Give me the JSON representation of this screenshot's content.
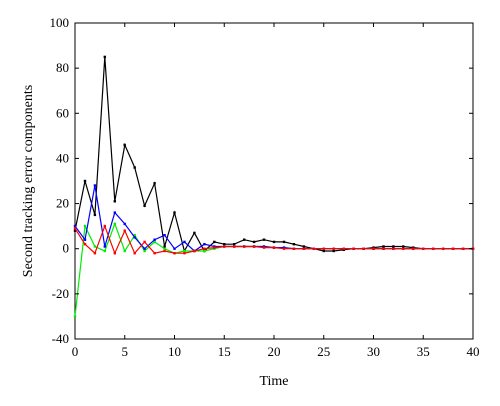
{
  "chart_data": {
    "type": "line",
    "title": "",
    "xlabel": "Time",
    "ylabel": "Second tracking error components",
    "xlim": [
      0,
      40
    ],
    "ylim": [
      -40,
      100
    ],
    "xticks": [
      0,
      5,
      10,
      15,
      20,
      25,
      30,
      35,
      40
    ],
    "yticks": [
      -40,
      -20,
      0,
      20,
      40,
      60,
      80,
      100
    ],
    "grid": false,
    "series": [
      {
        "color": "#000000",
        "x": [
          0,
          1,
          2,
          3,
          4,
          5,
          6,
          7,
          8,
          9,
          10,
          11,
          12,
          13,
          14,
          15,
          16,
          17,
          18,
          19,
          20,
          21,
          22,
          23,
          24,
          25,
          26,
          27,
          28,
          29,
          30,
          31,
          32,
          33,
          34,
          35,
          36,
          37,
          38,
          39,
          40
        ],
        "y": [
          8,
          30,
          15,
          85,
          21,
          46,
          36,
          19,
          29,
          1,
          16,
          -1,
          7,
          -1,
          3,
          2,
          2,
          4,
          3,
          4,
          3,
          3,
          2,
          1,
          0,
          -1,
          -1,
          -0.5,
          0,
          0,
          0.5,
          1,
          1,
          1,
          0.5,
          0,
          0,
          0,
          0,
          0,
          0
        ]
      },
      {
        "color": "#00ee00",
        "x": [
          0,
          1,
          2,
          3,
          4,
          5,
          6,
          7,
          8,
          9,
          10,
          11,
          12,
          13,
          14,
          15,
          16,
          17,
          18,
          19,
          20,
          21,
          22,
          23,
          24,
          25,
          26,
          27,
          28,
          29,
          30,
          31,
          32,
          33,
          34,
          35,
          36,
          37,
          38,
          39,
          40
        ],
        "y": [
          -30,
          10,
          1,
          -1,
          11,
          -1,
          6,
          -1,
          3,
          0,
          -2,
          -1,
          -1,
          -1,
          0,
          1,
          1,
          1,
          1,
          1,
          0.5,
          0.5,
          0,
          0,
          0,
          0,
          0,
          0,
          0,
          0,
          0,
          0,
          0,
          0,
          0,
          0,
          0,
          0,
          0,
          0,
          0
        ]
      },
      {
        "color": "#0000ff",
        "x": [
          0,
          1,
          2,
          3,
          4,
          5,
          6,
          7,
          8,
          9,
          10,
          11,
          12,
          13,
          14,
          15,
          16,
          17,
          18,
          19,
          20,
          21,
          22,
          23,
          24,
          25,
          26,
          27,
          28,
          29,
          30,
          31,
          32,
          33,
          34,
          35,
          36,
          37,
          38,
          39,
          40
        ],
        "y": [
          10,
          4,
          28,
          1,
          16,
          11,
          5,
          0,
          4,
          6,
          0,
          3,
          -1,
          2,
          1,
          1,
          1,
          1,
          1,
          1,
          0.5,
          0.5,
          0,
          0,
          0,
          0,
          0,
          0,
          0,
          0,
          0,
          0,
          0,
          0,
          0,
          0,
          0,
          0,
          0,
          0,
          0
        ]
      },
      {
        "color": "#ff0000",
        "x": [
          0,
          1,
          2,
          3,
          4,
          5,
          6,
          7,
          8,
          9,
          10,
          11,
          12,
          13,
          14,
          15,
          16,
          17,
          18,
          19,
          20,
          21,
          22,
          23,
          24,
          25,
          26,
          27,
          28,
          29,
          30,
          31,
          32,
          33,
          34,
          35,
          36,
          37,
          38,
          39,
          40
        ],
        "y": [
          9,
          2,
          -2,
          10,
          -2,
          8,
          -2,
          3,
          -2,
          -1,
          -2,
          -2,
          -1,
          0,
          0.5,
          1,
          1,
          1,
          1,
          0.5,
          0.5,
          0,
          0,
          0,
          0,
          0,
          0,
          0,
          0,
          0,
          0,
          0,
          0,
          0,
          0,
          0,
          0,
          0,
          0,
          0,
          0
        ]
      }
    ]
  }
}
